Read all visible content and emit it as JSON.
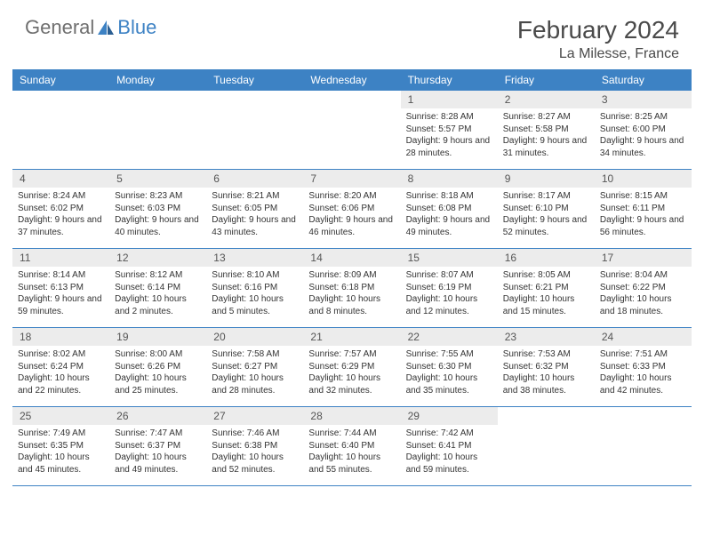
{
  "brand": {
    "general": "General",
    "blue": "Blue",
    "logo_color": "#3d82c4"
  },
  "title": "February 2024",
  "location": "La Milesse, France",
  "colors": {
    "header_bar": "#3d82c4",
    "daynum_bg": "#ececec",
    "rule": "#3d82c4",
    "text": "#333333",
    "muted": "#6f6f6f"
  },
  "typography": {
    "title_size": 28,
    "location_size": 16,
    "dow_size": 12,
    "cell_size": 10
  },
  "days_of_week": [
    "Sunday",
    "Monday",
    "Tuesday",
    "Wednesday",
    "Thursday",
    "Friday",
    "Saturday"
  ],
  "grid": {
    "rows": 5,
    "cols": 7,
    "first_day_col": 4,
    "num_days": 29
  },
  "days": {
    "1": {
      "sunrise": "Sunrise: 8:28 AM",
      "sunset": "Sunset: 5:57 PM",
      "daylight": "Daylight: 9 hours and 28 minutes."
    },
    "2": {
      "sunrise": "Sunrise: 8:27 AM",
      "sunset": "Sunset: 5:58 PM",
      "daylight": "Daylight: 9 hours and 31 minutes."
    },
    "3": {
      "sunrise": "Sunrise: 8:25 AM",
      "sunset": "Sunset: 6:00 PM",
      "daylight": "Daylight: 9 hours and 34 minutes."
    },
    "4": {
      "sunrise": "Sunrise: 8:24 AM",
      "sunset": "Sunset: 6:02 PM",
      "daylight": "Daylight: 9 hours and 37 minutes."
    },
    "5": {
      "sunrise": "Sunrise: 8:23 AM",
      "sunset": "Sunset: 6:03 PM",
      "daylight": "Daylight: 9 hours and 40 minutes."
    },
    "6": {
      "sunrise": "Sunrise: 8:21 AM",
      "sunset": "Sunset: 6:05 PM",
      "daylight": "Daylight: 9 hours and 43 minutes."
    },
    "7": {
      "sunrise": "Sunrise: 8:20 AM",
      "sunset": "Sunset: 6:06 PM",
      "daylight": "Daylight: 9 hours and 46 minutes."
    },
    "8": {
      "sunrise": "Sunrise: 8:18 AM",
      "sunset": "Sunset: 6:08 PM",
      "daylight": "Daylight: 9 hours and 49 minutes."
    },
    "9": {
      "sunrise": "Sunrise: 8:17 AM",
      "sunset": "Sunset: 6:10 PM",
      "daylight": "Daylight: 9 hours and 52 minutes."
    },
    "10": {
      "sunrise": "Sunrise: 8:15 AM",
      "sunset": "Sunset: 6:11 PM",
      "daylight": "Daylight: 9 hours and 56 minutes."
    },
    "11": {
      "sunrise": "Sunrise: 8:14 AM",
      "sunset": "Sunset: 6:13 PM",
      "daylight": "Daylight: 9 hours and 59 minutes."
    },
    "12": {
      "sunrise": "Sunrise: 8:12 AM",
      "sunset": "Sunset: 6:14 PM",
      "daylight": "Daylight: 10 hours and 2 minutes."
    },
    "13": {
      "sunrise": "Sunrise: 8:10 AM",
      "sunset": "Sunset: 6:16 PM",
      "daylight": "Daylight: 10 hours and 5 minutes."
    },
    "14": {
      "sunrise": "Sunrise: 8:09 AM",
      "sunset": "Sunset: 6:18 PM",
      "daylight": "Daylight: 10 hours and 8 minutes."
    },
    "15": {
      "sunrise": "Sunrise: 8:07 AM",
      "sunset": "Sunset: 6:19 PM",
      "daylight": "Daylight: 10 hours and 12 minutes."
    },
    "16": {
      "sunrise": "Sunrise: 8:05 AM",
      "sunset": "Sunset: 6:21 PM",
      "daylight": "Daylight: 10 hours and 15 minutes."
    },
    "17": {
      "sunrise": "Sunrise: 8:04 AM",
      "sunset": "Sunset: 6:22 PM",
      "daylight": "Daylight: 10 hours and 18 minutes."
    },
    "18": {
      "sunrise": "Sunrise: 8:02 AM",
      "sunset": "Sunset: 6:24 PM",
      "daylight": "Daylight: 10 hours and 22 minutes."
    },
    "19": {
      "sunrise": "Sunrise: 8:00 AM",
      "sunset": "Sunset: 6:26 PM",
      "daylight": "Daylight: 10 hours and 25 minutes."
    },
    "20": {
      "sunrise": "Sunrise: 7:58 AM",
      "sunset": "Sunset: 6:27 PM",
      "daylight": "Daylight: 10 hours and 28 minutes."
    },
    "21": {
      "sunrise": "Sunrise: 7:57 AM",
      "sunset": "Sunset: 6:29 PM",
      "daylight": "Daylight: 10 hours and 32 minutes."
    },
    "22": {
      "sunrise": "Sunrise: 7:55 AM",
      "sunset": "Sunset: 6:30 PM",
      "daylight": "Daylight: 10 hours and 35 minutes."
    },
    "23": {
      "sunrise": "Sunrise: 7:53 AM",
      "sunset": "Sunset: 6:32 PM",
      "daylight": "Daylight: 10 hours and 38 minutes."
    },
    "24": {
      "sunrise": "Sunrise: 7:51 AM",
      "sunset": "Sunset: 6:33 PM",
      "daylight": "Daylight: 10 hours and 42 minutes."
    },
    "25": {
      "sunrise": "Sunrise: 7:49 AM",
      "sunset": "Sunset: 6:35 PM",
      "daylight": "Daylight: 10 hours and 45 minutes."
    },
    "26": {
      "sunrise": "Sunrise: 7:47 AM",
      "sunset": "Sunset: 6:37 PM",
      "daylight": "Daylight: 10 hours and 49 minutes."
    },
    "27": {
      "sunrise": "Sunrise: 7:46 AM",
      "sunset": "Sunset: 6:38 PM",
      "daylight": "Daylight: 10 hours and 52 minutes."
    },
    "28": {
      "sunrise": "Sunrise: 7:44 AM",
      "sunset": "Sunset: 6:40 PM",
      "daylight": "Daylight: 10 hours and 55 minutes."
    },
    "29": {
      "sunrise": "Sunrise: 7:42 AM",
      "sunset": "Sunset: 6:41 PM",
      "daylight": "Daylight: 10 hours and 59 minutes."
    }
  }
}
